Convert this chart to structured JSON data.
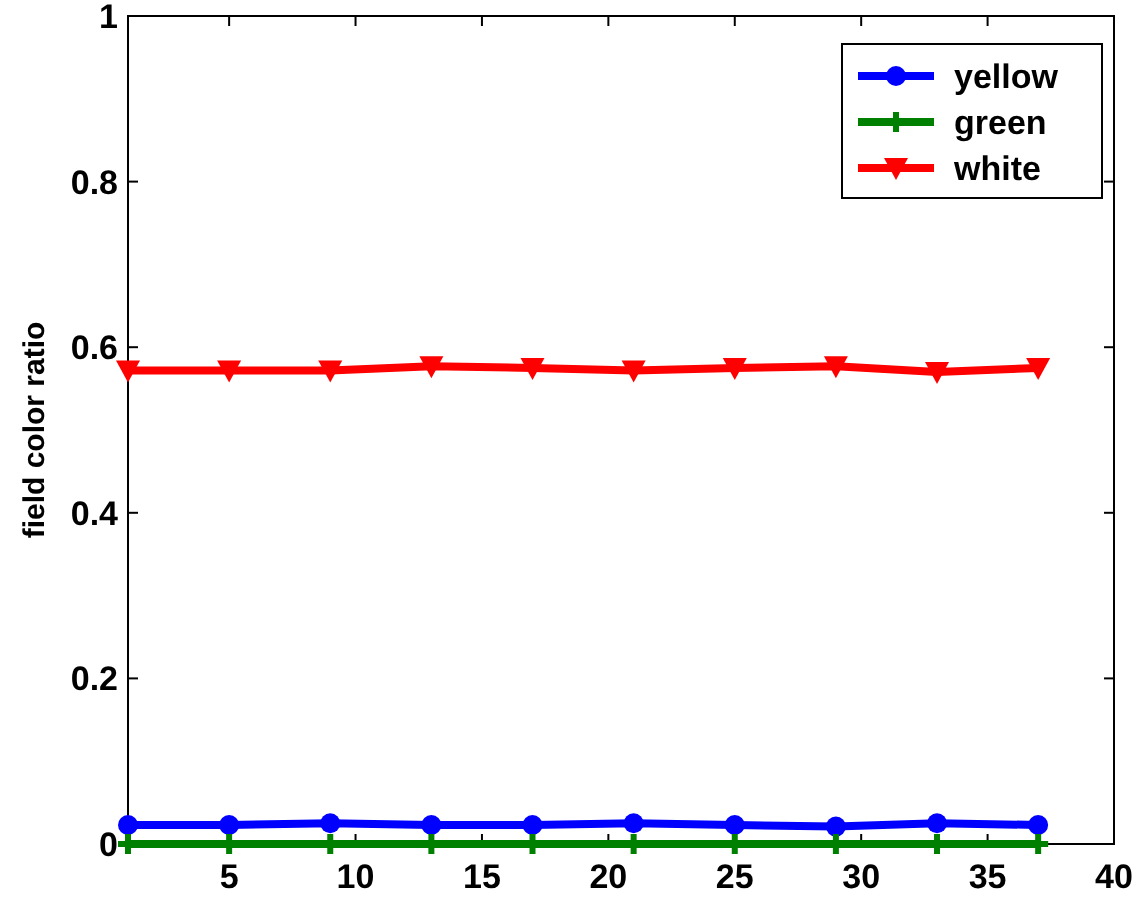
{
  "chart_data": {
    "type": "line",
    "ylabel": "field color ratio",
    "x": [
      1,
      5,
      9,
      13,
      17,
      21,
      25,
      29,
      33,
      37
    ],
    "xlim": [
      1,
      40
    ],
    "xticks": [
      5,
      10,
      15,
      20,
      25,
      30,
      35,
      40
    ],
    "ylim": [
      0,
      1
    ],
    "yticks": [
      0,
      0.2,
      0.4,
      0.6,
      0.8,
      1
    ],
    "grid": false,
    "legend": "top right",
    "line_style": "solid",
    "series": [
      {
        "name": "yellow",
        "color": "#0000ff",
        "marker": "circle",
        "values": [
          0.023,
          0.023,
          0.025,
          0.023,
          0.023,
          0.025,
          0.023,
          0.021,
          0.025,
          0.023
        ]
      },
      {
        "name": "green",
        "color": "#008000",
        "marker": "cross",
        "values": [
          0,
          0,
          0,
          0,
          0,
          0,
          0,
          0,
          0,
          0
        ]
      },
      {
        "name": "white",
        "color": "#ff0000",
        "marker": "triangle",
        "values": [
          0.572,
          0.572,
          0.572,
          0.577,
          0.575,
          0.572,
          0.575,
          0.577,
          0.57,
          0.575
        ]
      }
    ]
  }
}
